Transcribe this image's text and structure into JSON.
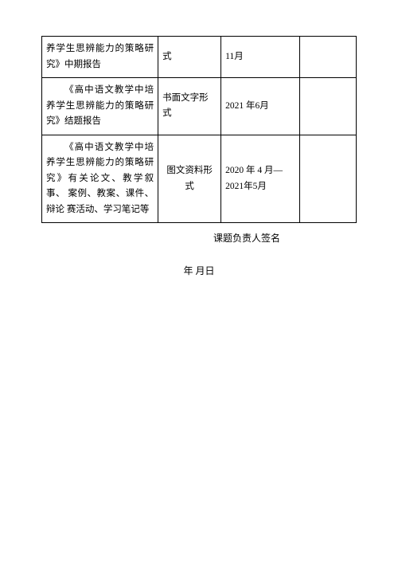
{
  "table": {
    "rows": [
      {
        "c1": "养学生思辨能力的策略研究》中期报告",
        "c2": "式",
        "c3": "11月",
        "c4": ""
      },
      {
        "c1": "《高中语文教学中培 养学生思辨能力的策略研 究》结题报告",
        "c2": "书面文字形式",
        "c3": "2021 年6月",
        "c4": ""
      },
      {
        "c1": "《高中语文教学中培 养学生思辨能力的策略研 究》有关论文、教学叙事、 案例、教案、课件、辩论 赛活动、学习笔记等",
        "c2": "图文资料形式",
        "c3": "2020 年 4 月—2021年5月",
        "c4": ""
      }
    ]
  },
  "signature_label": "课题负责人签名",
  "date_label": "年 月日"
}
